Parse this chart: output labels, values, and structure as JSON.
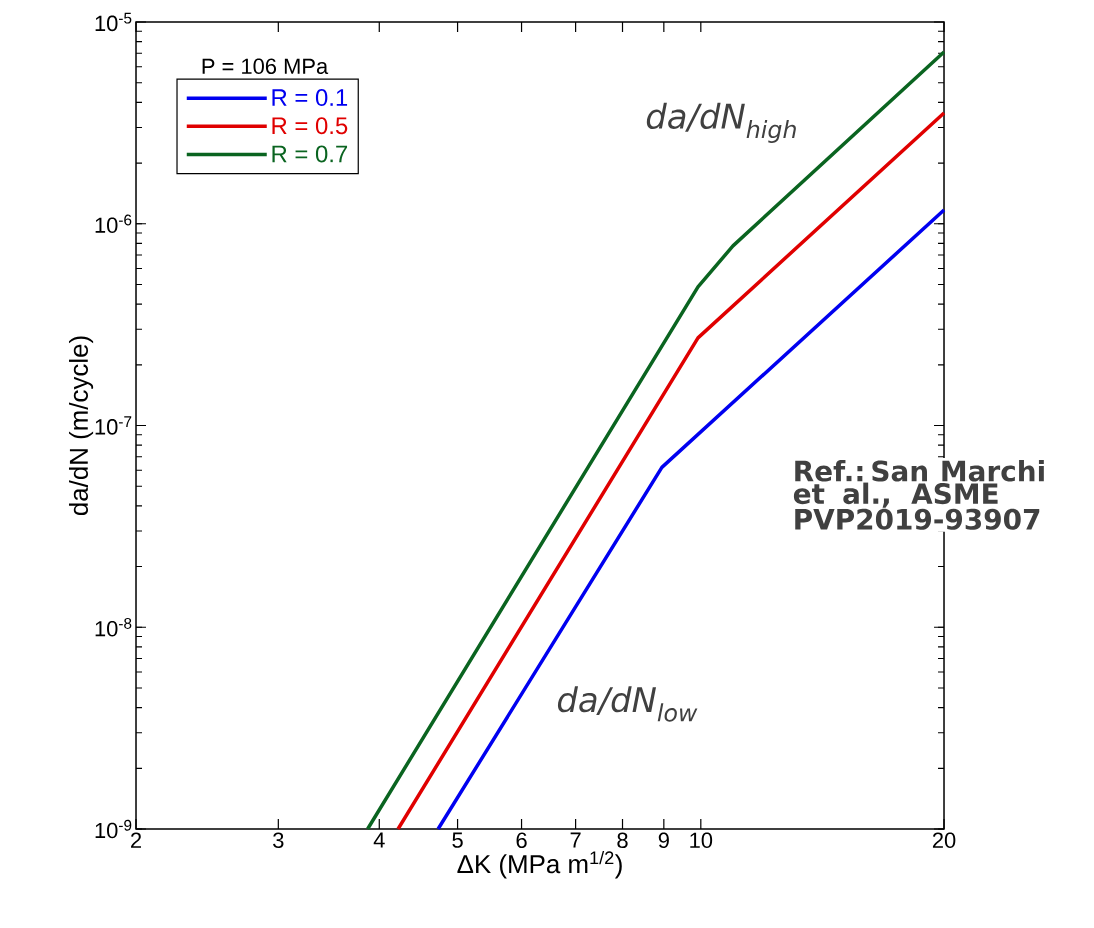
{
  "chart_data": {
    "type": "line",
    "xlabel": "ΔK (MPa m$^{1/2}$)",
    "ylabel": "da/dN (m/cycle)",
    "log": "xy",
    "marker": "none",
    "line_style": "solid",
    "legend": "top left",
    "grid": false,
    "xlim": [
      2,
      20
    ],
    "ylim": [
      1e-09,
      1e-05
    ],
    "xticks": [
      2,
      3,
      4,
      5,
      6,
      7,
      8,
      9,
      10,
      20
    ],
    "yticks": [
      {
        "value": 1e-09,
        "label": "10$^{-9}$"
      },
      {
        "value": 1e-08,
        "label": "10$^{-8}$"
      },
      {
        "value": 1e-07,
        "label": "10$^{-7}$"
      },
      {
        "value": 1e-06,
        "label": "10$^{-6}$"
      },
      {
        "value": 1e-05,
        "label": "10$^{-5}$"
      }
    ],
    "series": [
      {
        "name": "R = 0.1",
        "color": "#0000f0",
        "x": [
          4.73,
          8.95,
          20
        ],
        "values": [
          1e-09,
          6.2e-08,
          1.17e-06
        ]
      },
      {
        "name": "R = 0.5",
        "color": "#e00000",
        "x": [
          4.22,
          9.92,
          20
        ],
        "values": [
          1e-09,
          2.72e-07,
          3.54e-06
        ]
      },
      {
        "name": "R = 0.7",
        "color": "#0a6420",
        "x": [
          3.87,
          9.92,
          10.96,
          20
        ],
        "values": [
          1e-09,
          4.87e-07,
          7.77e-07,
          7.1e-06
        ]
      }
    ],
    "annotations": [
      "P = 106 MPa",
      "da/dN$_{high}$",
      "da/dN$_{low}$",
      "Ref.: San Marchi et al., ASME PVP2019-93907"
    ]
  }
}
